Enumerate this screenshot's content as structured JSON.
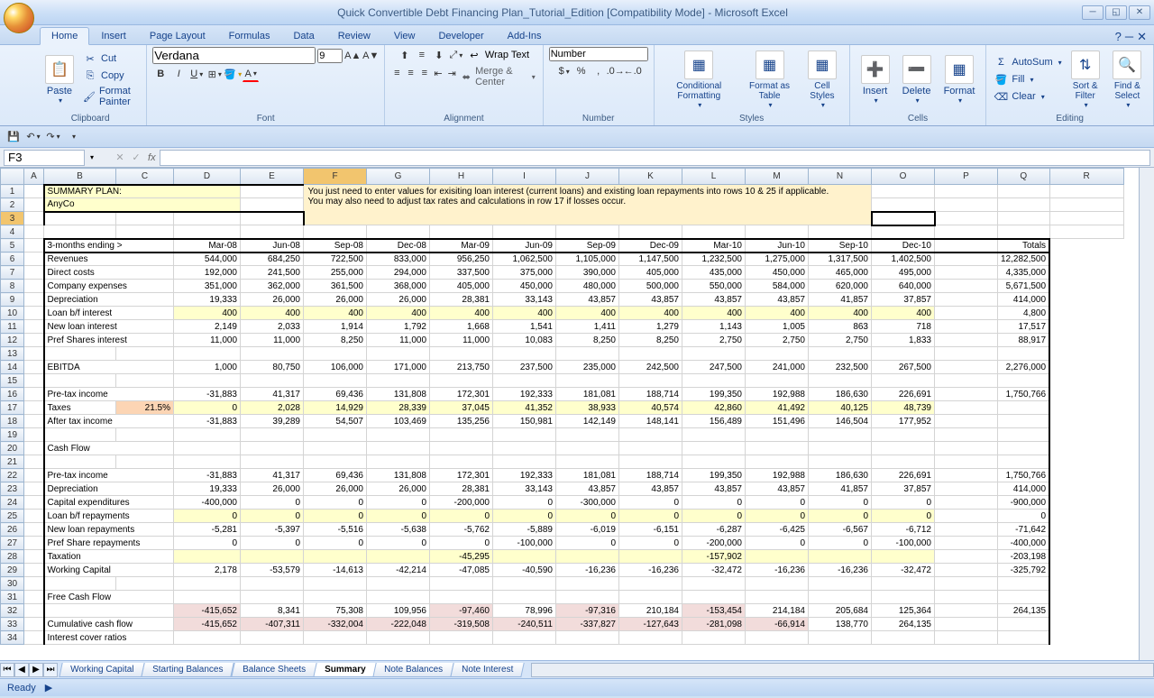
{
  "app": {
    "title": "Quick Convertible Debt Financing Plan_Tutorial_Edition  [Compatibility Mode] - Microsoft Excel"
  },
  "tabs": [
    "Home",
    "Insert",
    "Page Layout",
    "Formulas",
    "Data",
    "Review",
    "View",
    "Developer",
    "Add-Ins"
  ],
  "active_tab": "Home",
  "ribbon": {
    "clipboard": {
      "label": "Clipboard",
      "paste": "Paste",
      "cut": "Cut",
      "copy": "Copy",
      "painter": "Format Painter"
    },
    "font": {
      "label": "Font",
      "name": "Verdana",
      "size": "9"
    },
    "alignment": {
      "label": "Alignment",
      "wrap": "Wrap Text",
      "merge": "Merge & Center"
    },
    "number": {
      "label": "Number",
      "format": "Number"
    },
    "styles": {
      "label": "Styles",
      "cond": "Conditional Formatting",
      "table": "Format as Table",
      "cell": "Cell Styles"
    },
    "cells": {
      "label": "Cells",
      "insert": "Insert",
      "delete": "Delete",
      "format": "Format"
    },
    "editing": {
      "label": "Editing",
      "autosum": "AutoSum",
      "fill": "Fill",
      "clear": "Clear",
      "sort": "Sort & Filter",
      "find": "Find & Select"
    }
  },
  "namebox": "F3",
  "columns": [
    "A",
    "B",
    "C",
    "D",
    "E",
    "F",
    "G",
    "H",
    "I",
    "J",
    "K",
    "L",
    "M",
    "N",
    "O",
    "P",
    "Q",
    "R"
  ],
  "active_col": "F",
  "col_widths": {
    "A": 22,
    "B": 80,
    "C": 64,
    "D": 74,
    "E": 70,
    "F": 70,
    "G": 70,
    "H": 70,
    "I": 70,
    "J": 70,
    "K": 70,
    "L": 70,
    "M": 70,
    "N": 70,
    "O": 70,
    "P": 70,
    "Q": 20,
    "R": 82
  },
  "note": "You just need to enter values for exisiting loan interest (current loans) and existing loan repayments into rows 10 & 25 if applicable.\nYou may also need to adjust tax rates and calculations in row 17 if losses occur.",
  "header_row": {
    "label": "3-months ending >",
    "periods": [
      "Mar-08",
      "Jun-08",
      "Sep-08",
      "Dec-08",
      "Mar-09",
      "Jun-09",
      "Sep-09",
      "Dec-09",
      "Mar-10",
      "Jun-10",
      "Sep-10",
      "Dec-10"
    ],
    "total": "Totals"
  },
  "title_cell": "SUMMARY PLAN:",
  "company": "AnyCo",
  "tax_rate": "21.5%",
  "rows": [
    {
      "n": 6,
      "label": "Revenues",
      "vals": [
        "544,000",
        "684,250",
        "722,500",
        "833,000",
        "956,250",
        "1,062,500",
        "1,105,000",
        "1,147,500",
        "1,232,500",
        "1,275,000",
        "1,317,500",
        "1,402,500"
      ],
      "total": "12,282,500"
    },
    {
      "n": 7,
      "label": "Direct costs",
      "vals": [
        "192,000",
        "241,500",
        "255,000",
        "294,000",
        "337,500",
        "375,000",
        "390,000",
        "405,000",
        "435,000",
        "450,000",
        "465,000",
        "495,000"
      ],
      "total": "4,335,000"
    },
    {
      "n": 8,
      "label": "Company expenses",
      "vals": [
        "351,000",
        "362,000",
        "361,500",
        "368,000",
        "405,000",
        "450,000",
        "480,000",
        "500,000",
        "550,000",
        "584,000",
        "620,000",
        "640,000"
      ],
      "total": "5,671,500"
    },
    {
      "n": 9,
      "label": "Depreciation",
      "vals": [
        "19,333",
        "26,000",
        "26,000",
        "26,000",
        "28,381",
        "33,143",
        "43,857",
        "43,857",
        "43,857",
        "43,857",
        "41,857",
        "37,857"
      ],
      "total": "414,000"
    },
    {
      "n": 10,
      "label": "Loan b/f interest",
      "vals": [
        "400",
        "400",
        "400",
        "400",
        "400",
        "400",
        "400",
        "400",
        "400",
        "400",
        "400",
        "400"
      ],
      "total": "4,800",
      "yellow": true
    },
    {
      "n": 11,
      "label": "New loan interest",
      "vals": [
        "2,149",
        "2,033",
        "1,914",
        "1,792",
        "1,668",
        "1,541",
        "1,411",
        "1,279",
        "1,143",
        "1,005",
        "863",
        "718"
      ],
      "total": "17,517"
    },
    {
      "n": 12,
      "label": "Pref Shares interest",
      "vals": [
        "11,000",
        "11,000",
        "8,250",
        "11,000",
        "11,000",
        "10,083",
        "8,250",
        "8,250",
        "2,750",
        "2,750",
        "2,750",
        "1,833"
      ],
      "total": "88,917"
    },
    {
      "n": 14,
      "label": "EBITDA",
      "vals": [
        "1,000",
        "80,750",
        "106,000",
        "171,000",
        "213,750",
        "237,500",
        "235,000",
        "242,500",
        "247,500",
        "241,000",
        "232,500",
        "267,500"
      ],
      "total": "2,276,000"
    },
    {
      "n": 16,
      "label": "Pre-tax income",
      "vals": [
        "-31,883",
        "41,317",
        "69,436",
        "131,808",
        "172,301",
        "192,333",
        "181,081",
        "188,714",
        "199,350",
        "192,988",
        "186,630",
        "226,691"
      ],
      "total": "1,750,766"
    },
    {
      "n": 17,
      "label": "Taxes",
      "vals": [
        "0",
        "2,028",
        "14,929",
        "28,339",
        "37,045",
        "41,352",
        "38,933",
        "40,574",
        "42,860",
        "41,492",
        "40,125",
        "48,739"
      ],
      "total": "",
      "yellow": true,
      "tax": true
    },
    {
      "n": 18,
      "label": "After tax income",
      "vals": [
        "-31,883",
        "39,289",
        "54,507",
        "103,469",
        "135,256",
        "150,981",
        "142,149",
        "148,141",
        "156,489",
        "151,496",
        "146,504",
        "177,952"
      ],
      "total": ""
    },
    {
      "n": 20,
      "label": "Cash Flow",
      "vals": [],
      "total": "",
      "section": true
    },
    {
      "n": 22,
      "label": "Pre-tax income",
      "vals": [
        "-31,883",
        "41,317",
        "69,436",
        "131,808",
        "172,301",
        "192,333",
        "181,081",
        "188,714",
        "199,350",
        "192,988",
        "186,630",
        "226,691"
      ],
      "total": "1,750,766"
    },
    {
      "n": 23,
      "label": "Depreciation",
      "vals": [
        "19,333",
        "26,000",
        "26,000",
        "26,000",
        "28,381",
        "33,143",
        "43,857",
        "43,857",
        "43,857",
        "43,857",
        "41,857",
        "37,857"
      ],
      "total": "414,000"
    },
    {
      "n": 24,
      "label": "Capital expenditures",
      "vals": [
        "-400,000",
        "0",
        "0",
        "0",
        "-200,000",
        "0",
        "-300,000",
        "0",
        "0",
        "0",
        "0",
        "0"
      ],
      "total": "-900,000"
    },
    {
      "n": 25,
      "label": "Loan b/f repayments",
      "vals": [
        "0",
        "0",
        "0",
        "0",
        "0",
        "0",
        "0",
        "0",
        "0",
        "0",
        "0",
        "0"
      ],
      "total": "0",
      "yellow": true
    },
    {
      "n": 26,
      "label": "New loan repayments",
      "vals": [
        "-5,281",
        "-5,397",
        "-5,516",
        "-5,638",
        "-5,762",
        "-5,889",
        "-6,019",
        "-6,151",
        "-6,287",
        "-6,425",
        "-6,567",
        "-6,712"
      ],
      "total": "-71,642"
    },
    {
      "n": 27,
      "label": "Pref Share repayments",
      "vals": [
        "0",
        "0",
        "0",
        "0",
        "0",
        "-100,000",
        "0",
        "0",
        "-200,000",
        "0",
        "0",
        "-100,000"
      ],
      "total": "-400,000"
    },
    {
      "n": 28,
      "label": "Taxation",
      "vals": [
        "",
        "",
        "",
        "",
        "-45,295",
        "",
        "",
        "",
        "-157,902",
        "",
        "",
        ""
      ],
      "total": "-203,198",
      "yellow": true
    },
    {
      "n": 29,
      "label": "Working Capital",
      "vals": [
        "2,178",
        "-53,579",
        "-14,613",
        "-42,214",
        "-47,085",
        "-40,590",
        "-16,236",
        "-16,236",
        "-32,472",
        "-16,236",
        "-16,236",
        "-32,472"
      ],
      "total": "-325,792"
    },
    {
      "n": 31,
      "label": "Free Cash Flow",
      "vals": [],
      "total": "",
      "section": true
    },
    {
      "n": 32,
      "label": "",
      "vals": [
        "-415,652",
        "8,341",
        "75,308",
        "109,956",
        "-97,460",
        "78,996",
        "-97,316",
        "210,184",
        "-153,454",
        "214,184",
        "205,684",
        "125,364"
      ],
      "total": "264,135",
      "pink": [
        0,
        4,
        6,
        8
      ]
    },
    {
      "n": 33,
      "label": "Cumulative cash flow",
      "vals": [
        "-415,652",
        "-407,311",
        "-332,004",
        "-222,048",
        "-319,508",
        "-240,511",
        "-337,827",
        "-127,643",
        "-281,098",
        "-66,914",
        "138,770",
        "264,135"
      ],
      "total": "",
      "pink": [
        0,
        1,
        2,
        3,
        4,
        5,
        6,
        7,
        8,
        9
      ]
    },
    {
      "n": 34,
      "label": "Interest cover ratios",
      "vals": [],
      "total": "",
      "section": true
    }
  ],
  "sheet_tabs": [
    "Working Capital",
    "Starting Balances",
    "Balance Sheets",
    "Summary",
    "Note Balances",
    "Note Interest"
  ],
  "active_sheet": "Summary",
  "status": "Ready"
}
